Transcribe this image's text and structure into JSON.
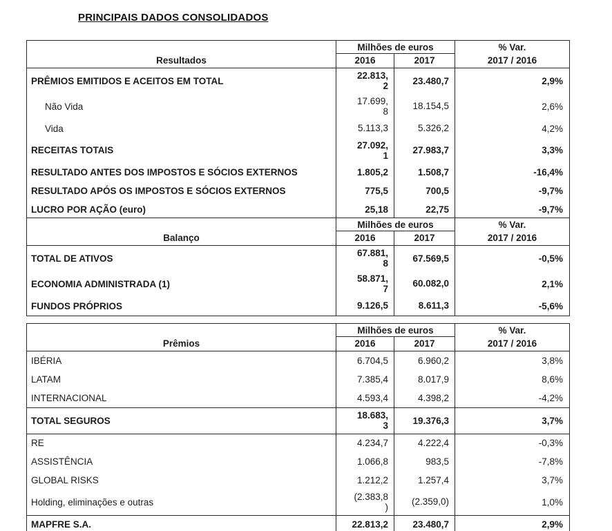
{
  "title": "PRINCIPAIS DADOS CONSOLIDADOS",
  "tables": [
    {
      "header": {
        "title": "Resultados",
        "group": "Milhões de euros",
        "col1": "2016",
        "col2": "2017",
        "var": "% Var.",
        "var_sub": "2017 / 2016"
      },
      "rows": [
        {
          "label": "PRÊMIOS EMITIDOS E ACEITOS EM TOTAL",
          "y2016": "22.813,\n2",
          "y2017": "23.480,7",
          "var": "2,9%"
        },
        {
          "label": "Não Vida",
          "y2016": "17.699,\n8",
          "y2017": "18.154,5",
          "var": "2,6%"
        },
        {
          "label": "Vida",
          "y2016": "5.113,3",
          "y2017": "5.326,2",
          "var": "4,2%"
        },
        {
          "label": "RECEITAS TOTAIS",
          "y2016": "27.092,\n1",
          "y2017": "27.983,7",
          "var": "3,3%"
        },
        {
          "label": "RESULTADO ANTES DOS IMPOSTOS E SÓCIOS EXTERNOS",
          "y2016": "1.805,2",
          "y2017": "1.508,7",
          "var": "-16,4%"
        },
        {
          "label": "RESULTADO APÓS OS IMPOSTOS E SÓCIOS EXTERNOS",
          "y2016": "775,5",
          "y2017": "700,5",
          "var": "-9,7%"
        },
        {
          "label": "LUCRO POR AÇÃO (euro)",
          "y2016": "25,18",
          "y2017": "22,75",
          "var": "-9,7%"
        }
      ]
    },
    {
      "header": {
        "title": "Balanço",
        "group": "Milhões de euros",
        "col1": "2016",
        "col2": "2017",
        "var": "% Var.",
        "var_sub": "2017 / 2016"
      },
      "rows": [
        {
          "label": "TOTAL DE ATIVOS",
          "y2016": "67.881,\n8",
          "y2017": "67.569,5",
          "var": "-0,5%"
        },
        {
          "label": "ECONOMIA ADMINISTRADA (1)",
          "y2016": "58.871,\n7",
          "y2017": "60.082,0",
          "var": "2,1%"
        },
        {
          "label": "FUNDOS PRÓPRIOS",
          "y2016": "9.126,5",
          "y2017": "8.611,3",
          "var": "-5,6%"
        }
      ]
    },
    {
      "header": {
        "title": "Prêmios",
        "group": "Milhões de euros",
        "col1": "2016",
        "col2": "2017",
        "var": "% Var.",
        "var_sub": "2017 / 2016"
      },
      "rows": [
        {
          "label": "IBÉRIA",
          "y2016": "6.704,5",
          "y2017": "6.960,2",
          "var": "3,8%"
        },
        {
          "label": "LATAM",
          "y2016": "7.385,4",
          "y2017": "8.017,9",
          "var": "8,6%"
        },
        {
          "label": "INTERNACIONAL",
          "y2016": "4.593,4",
          "y2017": "4.398,2",
          "var": "-4,2%"
        },
        {
          "label": "TOTAL SEGUROS",
          "y2016": "18.683,\n3",
          "y2017": "19.376,3",
          "var": "3,7%"
        },
        {
          "label": "RE",
          "y2016": "4.234,7",
          "y2017": "4.222,4",
          "var": "-0,3%"
        },
        {
          "label": "ASSISTÊNCIA",
          "y2016": "1.066,8",
          "y2017": "983,5",
          "var": "-7,8%"
        },
        {
          "label": "GLOBAL RISKS",
          "y2016": "1.212,2",
          "y2017": "1.257,4",
          "var": "3,7%"
        },
        {
          "label": "Holding, eliminações e outras",
          "y2016": "(2.383,8\n)",
          "y2017": "(2.359,0)",
          "var": "1,0%"
        },
        {
          "label": "MAPFRE S.A.",
          "y2016": "22.813,2",
          "y2017": "23.480,7",
          "var": "2,9%"
        }
      ]
    }
  ]
}
